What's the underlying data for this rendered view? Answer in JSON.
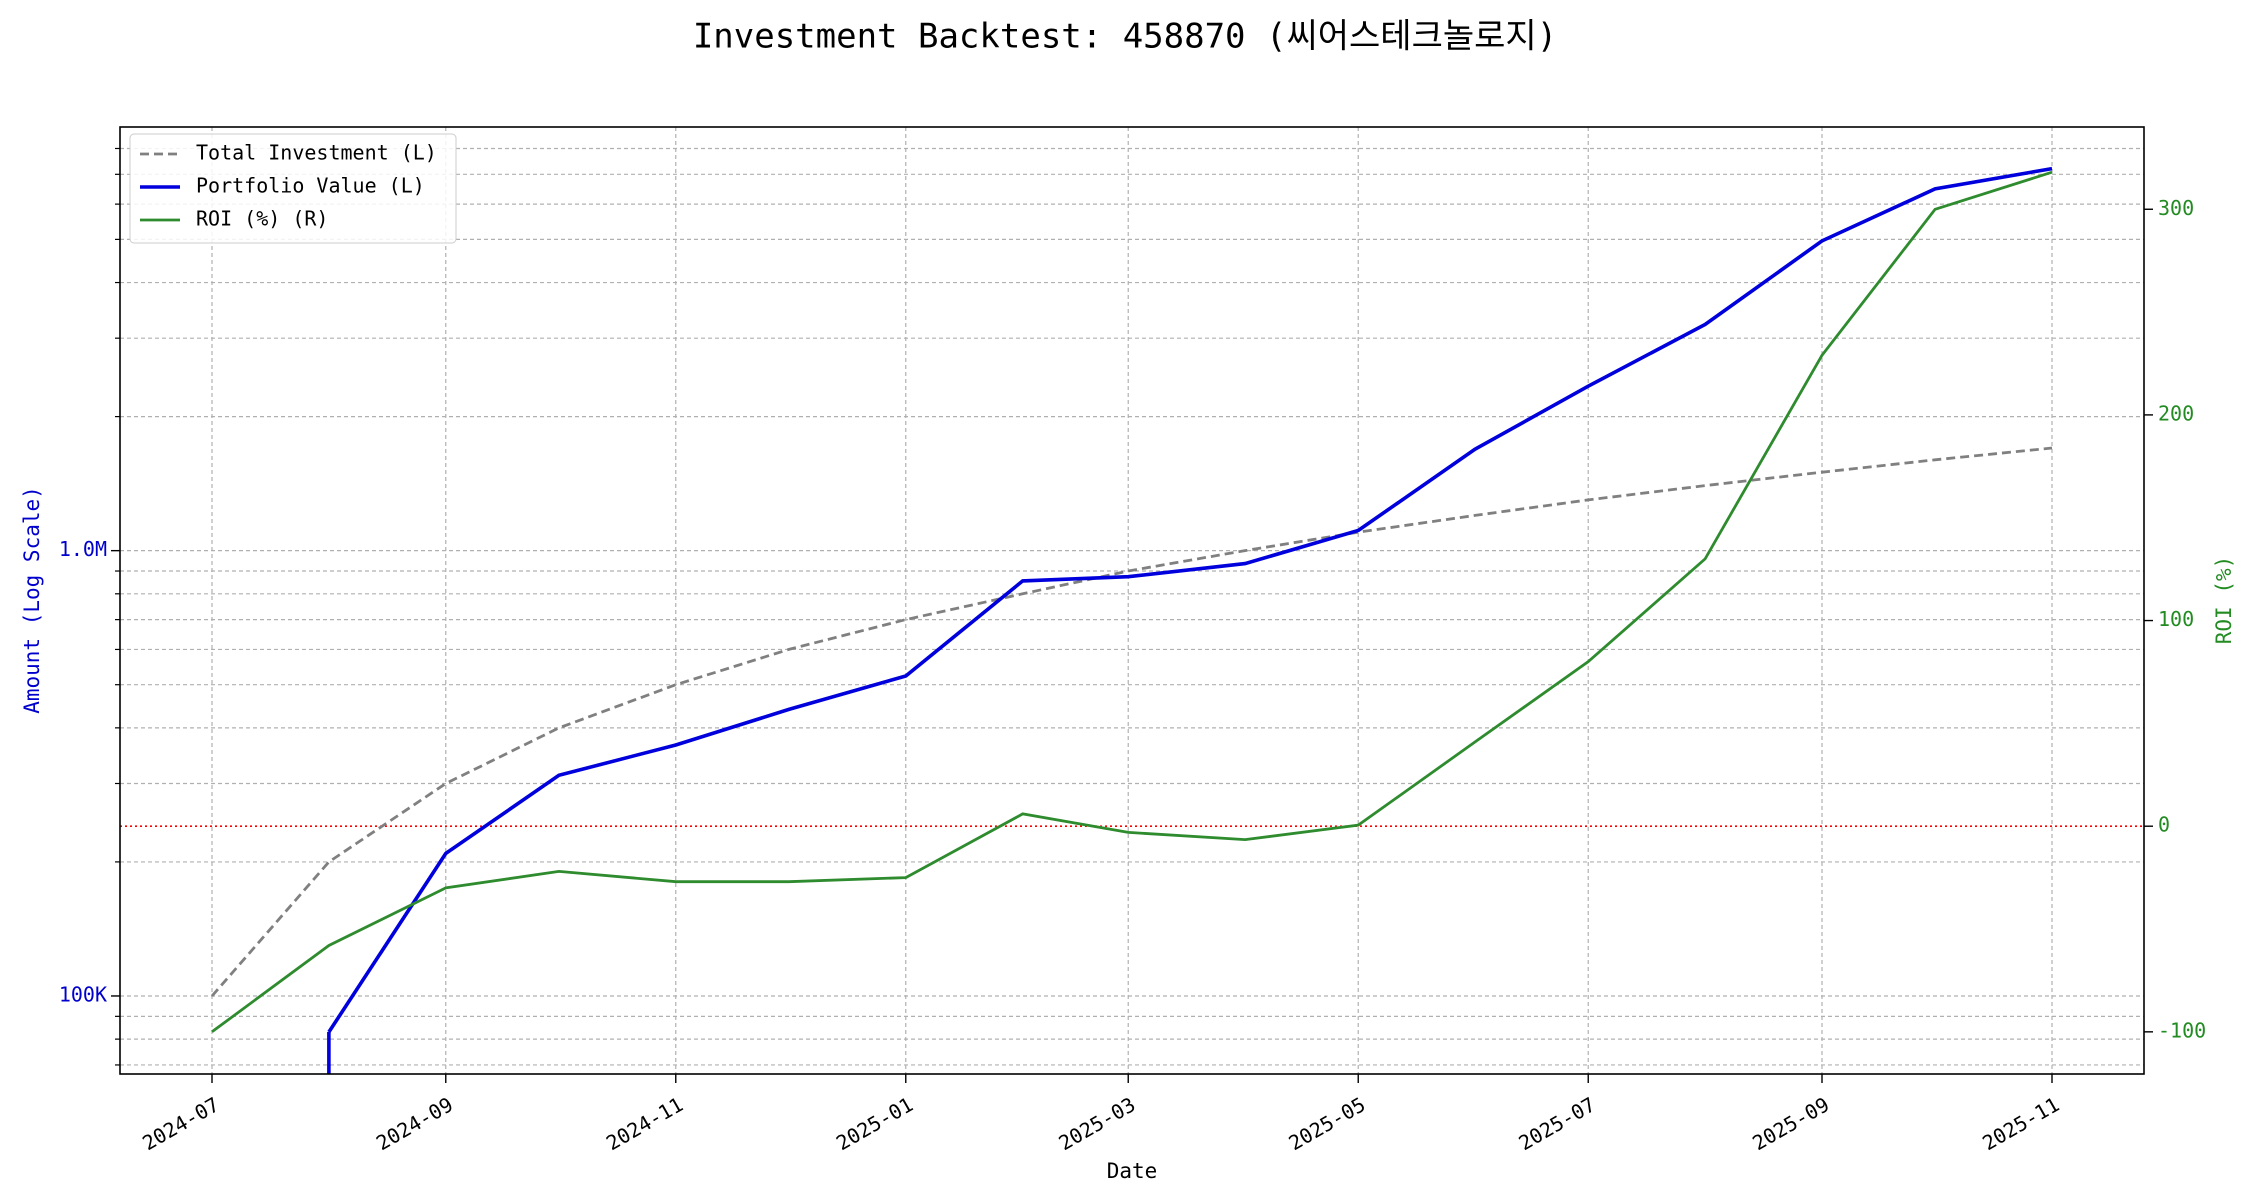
{
  "chart_data": {
    "type": "line",
    "title": "Investment Backtest: 458870 (씨어스테크놀로지)",
    "x_label": "Date",
    "y_label": "Amount (Log Scale)",
    "y2_label": "ROI (%)",
    "x": [
      "2024-07",
      "2024-08",
      "2024-09",
      "2024-10",
      "2024-11",
      "2024-12",
      "2025-01",
      "2025-02",
      "2025-03",
      "2025-04",
      "2025-05",
      "2025-06",
      "2025-07",
      "2025-08",
      "2025-09",
      "2025-10",
      "2025-11"
    ],
    "xticks": [
      "2024-07",
      "2024-09",
      "2024-11",
      "2025-01",
      "2025-03",
      "2025-05",
      "2025-07",
      "2025-09",
      "2025-11"
    ],
    "series": [
      {
        "name": "Total Investment (L)",
        "color": "#808080",
        "linestyle": "dashed",
        "axis": "y",
        "values": [
          100000,
          200000,
          300000,
          400000,
          500000,
          600000,
          700000,
          800000,
          900000,
          1000000,
          1100000,
          1200000,
          1300000,
          1400000,
          1500000,
          1600000,
          1700000
        ]
      },
      {
        "name": "Portfolio Value (L)",
        "color": "#0000dd",
        "linestyle": "solid",
        "axis": "y",
        "values": [
          0,
          83000,
          209000,
          313000,
          366000,
          440000,
          523000,
          855000,
          874000,
          935000,
          1110000,
          1690000,
          2340000,
          3220000,
          4960000,
          6490000,
          7210000
        ]
      },
      {
        "name": "ROI (%) (R)",
        "color": "#2e8b2e",
        "linestyle": "solid",
        "axis": "y2",
        "values": [
          -100,
          -58,
          -30,
          -22,
          -27,
          -27,
          -25,
          6,
          -3,
          -6.5,
          0.5,
          41,
          80,
          130,
          229,
          300,
          318
        ]
      }
    ],
    "ylog": true,
    "ylim": [
      66800,
      8940000
    ],
    "yticks": [
      {
        "value": 100000,
        "label": "100K"
      },
      {
        "value": 1000000,
        "label": "1.0M"
      }
    ],
    "yminorticks": [
      70000,
      80000,
      90000,
      200000,
      300000,
      400000,
      500000,
      600000,
      700000,
      800000,
      900000,
      2000000,
      3000000,
      4000000,
      5000000,
      6000000,
      7000000,
      8000000
    ],
    "y2lim": [
      -120.5,
      340
    ],
    "y2ticks": [
      -100,
      0,
      100,
      200,
      300
    ],
    "hline": {
      "axis": "y2",
      "value": 0,
      "color": "#ff0000"
    },
    "grid": true,
    "legend": "upper left",
    "y_label_color": "#0000cc",
    "y2_label_color": "#228b22"
  }
}
